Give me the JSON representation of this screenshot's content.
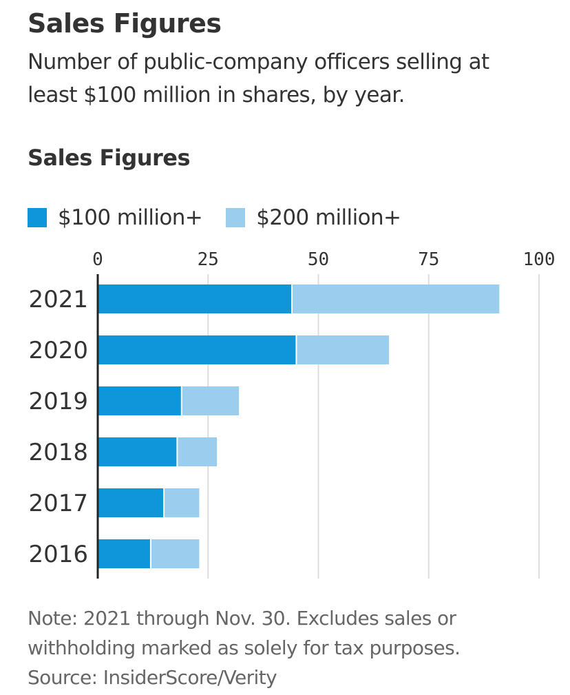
{
  "header": {
    "title": "Sales Figures",
    "subtitle_line1": "Number of public-company officers selling at",
    "subtitle_line2": "least $100 million in shares, by year."
  },
  "chart_data": {
    "type": "bar",
    "orientation": "horizontal",
    "stacked": true,
    "title": "Sales Figures",
    "categories": [
      "2021",
      "2020",
      "2019",
      "2018",
      "2017",
      "2016"
    ],
    "series": [
      {
        "name": "$100 million+",
        "color": "#0f95d9",
        "values": [
          44,
          45,
          19,
          18,
          15,
          12
        ]
      },
      {
        "name": "$200 million+",
        "color": "#9acdee",
        "values": [
          47,
          21,
          13,
          9,
          8,
          11
        ]
      }
    ],
    "xlim": [
      0,
      100
    ],
    "xticks": [
      "0",
      "25",
      "50",
      "75",
      "100"
    ],
    "grid": true,
    "legend_position": "top-left"
  },
  "footer": {
    "note_line1": "Note: 2021 through Nov. 30. Excludes sales or",
    "note_line2": "withholding marked as solely for tax purposes.",
    "source": "Source: InsiderScore/Verity"
  }
}
